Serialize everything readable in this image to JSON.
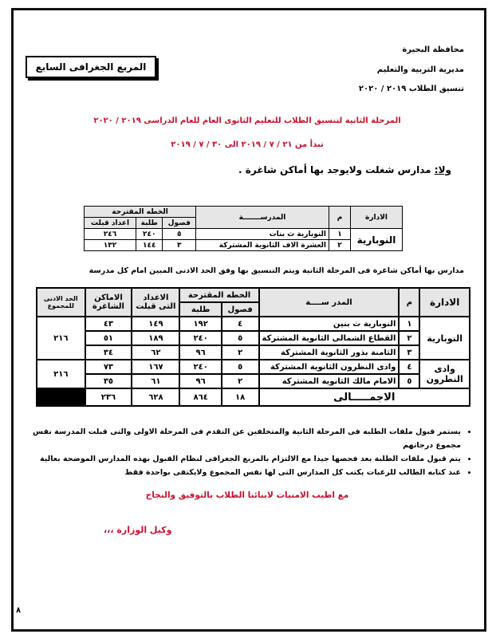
{
  "header": {
    "governorate": "محافظة البحيرة",
    "directorate": "مديرية التربية والتعليم",
    "coordination": "تنسيق الطلاب ٢٠١٩ / ٢٠٢٠",
    "zone_box": "المربع الجغرافى السابع"
  },
  "title": "المرحلة الثانية لتنسيق الطلاب للتعليم الثانوى العام للعام الدراسى ٢٠١٩ / ٢٠٢٠",
  "subtitle": "تبدأ من ٢١ / ٧ / ٢٠١٩ الى ٣٠ / ٧ / ٢٠١٩",
  "section1": {
    "heading": "ولا:",
    "heading_text": "مدارس شغلت ولايوجد بها أماكن شاغرة .",
    "table": {
      "header": [
        "الادارة",
        "م",
        "المدرســـــــة",
        "الخطه المقترحة",
        "فصول",
        "طلبة",
        "اعداد قبلت"
      ],
      "admin": "النوبارية",
      "rows": [
        [
          "١",
          "النوبارية ث بنات",
          "٥",
          "٢٤٠",
          "٢٤٦"
        ],
        [
          "٢",
          "العشرة الاف الثانوية المشتركة",
          "٣",
          "١٤٤",
          "١٣٢"
        ]
      ]
    }
  },
  "section2": {
    "intro": "مدارس بها أماكن شاغرة فى المرحلة الثانية ويتم التنسيق بها وفق الحد الادنى المبين امام كل مدرسة",
    "table": {
      "header": [
        "الادارة",
        "م",
        "المدر ســــة",
        "الخطه المقترحة",
        "فصول",
        "طلبة",
        "الاعداد التى قبلت",
        "الاماكن الشاغرة",
        "الحد الادنى للمجموع"
      ],
      "groups": [
        {
          "admin": "النوبارية",
          "min": "٢١٦",
          "rows": [
            [
              "١",
              "النوبارية ث بنين",
              "٤",
              "١٩٢",
              "١٤٩",
              "٤٣"
            ],
            [
              "٢",
              "القطاع الشمالى الثانوية المشتركة",
              "٥",
              "٢٤٠",
              "١٨٩",
              "٥١"
            ],
            [
              "٣",
              "الثامنة بذور الثانوية المشتركة",
              "٢",
              "٩٦",
              "٦٢",
              "٣٤"
            ]
          ]
        },
        {
          "admin": "وادى النطرون",
          "min": "٢١٦",
          "rows": [
            [
              "٤",
              "وادى النطرون الثانوية المشتركة",
              "٥",
              "٢٤٠",
              "١٦٧",
              "٧٣"
            ],
            [
              "٥",
              "الامام مالك الثانوية المشتركة",
              "٢",
              "٩٦",
              "٦١",
              "٣٥"
            ]
          ]
        }
      ],
      "total": {
        "label": "الاجمـــــالى",
        "values": [
          "١٨",
          "٨٦٤",
          "٦٢٨",
          "٢٣٦"
        ]
      }
    }
  },
  "notes": [
    "يستمر قبول ملفات الطلبه فى المرحلة الثانية والمتخلفين عن التقدم فى المرحلة الاولى والتى قبلت المدرسة نفس مجموع درجاتهم",
    "يتم قبول ملفات الطلبة بعد فحصها جيدا مع الالتزام بالمربع الجغرافى لنظام القبول بهذه المدارس الموضحة بعالية",
    "عند كتابه الطالب للرغبات يكتب كل المدارس التى لها نفس المجموع ولايكتفى بواحدة فقط"
  ],
  "closing": "مع اطيب الامنيات لابنائنا الطلاب بالتوفيق والنجاح",
  "signature": "وكيل الوزارة ،،،",
  "page_number": "٨"
}
